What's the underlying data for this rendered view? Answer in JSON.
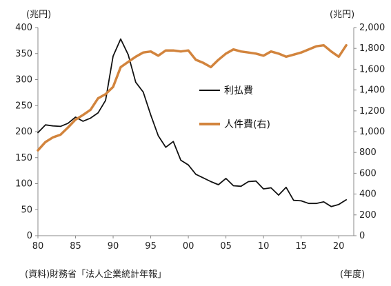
{
  "chart_data": {
    "type": "line",
    "title": "",
    "xlabel": "(年度)",
    "ylabel_left": "(兆円)",
    "ylabel_right": "(兆円)",
    "source": "(資料)財務省「法人企業統計年報」",
    "x": [
      1980,
      1981,
      1982,
      1983,
      1984,
      1985,
      1986,
      1987,
      1988,
      1989,
      1990,
      1991,
      1992,
      1993,
      1994,
      1995,
      1996,
      1997,
      1998,
      1999,
      2000,
      2001,
      2002,
      2003,
      2004,
      2005,
      2006,
      2007,
      2008,
      2009,
      2010,
      2011,
      2012,
      2013,
      2014,
      2015,
      2016,
      2017,
      2018,
      2019,
      2020,
      2021
    ],
    "x_ticks": [
      {
        "value": 1980,
        "label": "80"
      },
      {
        "value": 1985,
        "label": "85"
      },
      {
        "value": 1990,
        "label": "90"
      },
      {
        "value": 1995,
        "label": "95"
      },
      {
        "value": 2000,
        "label": "00"
      },
      {
        "value": 2005,
        "label": "05"
      },
      {
        "value": 2010,
        "label": "10"
      },
      {
        "value": 2015,
        "label": "15"
      },
      {
        "value": 2020,
        "label": "20"
      }
    ],
    "y_left": {
      "min": 0,
      "max": 400,
      "ticks": [
        "0",
        "50",
        "100",
        "150",
        "200",
        "250",
        "300",
        "350",
        "400"
      ]
    },
    "y_right": {
      "min": 0,
      "max": 2000,
      "ticks": [
        "0",
        "200",
        "400",
        "600",
        "800",
        "1,000",
        "1,200",
        "1,400",
        "1,600",
        "1,800",
        "2,000"
      ]
    },
    "grid": false,
    "legend_position": "center-right",
    "series": [
      {
        "name": "利払費",
        "axis": "left",
        "color": "#111111",
        "values": [
          198,
          213,
          211,
          210,
          216,
          228,
          220,
          226,
          236,
          260,
          345,
          378,
          348,
          295,
          276,
          232,
          192,
          170,
          181,
          145,
          136,
          118,
          111,
          104,
          98,
          110,
          96,
          95,
          104,
          105,
          90,
          92,
          78,
          93,
          68,
          67,
          62,
          62,
          65,
          56,
          60,
          69
        ]
      },
      {
        "name": "人件費(右)",
        "axis": "right",
        "color": "#d2843d",
        "values": [
          820,
          900,
          945,
          970,
          1040,
          1115,
          1160,
          1210,
          1320,
          1360,
          1430,
          1620,
          1670,
          1720,
          1760,
          1770,
          1730,
          1780,
          1780,
          1770,
          1780,
          1690,
          1660,
          1620,
          1690,
          1750,
          1790,
          1770,
          1760,
          1750,
          1730,
          1770,
          1750,
          1720,
          1740,
          1760,
          1790,
          1820,
          1830,
          1770,
          1720,
          1830
        ]
      }
    ]
  }
}
